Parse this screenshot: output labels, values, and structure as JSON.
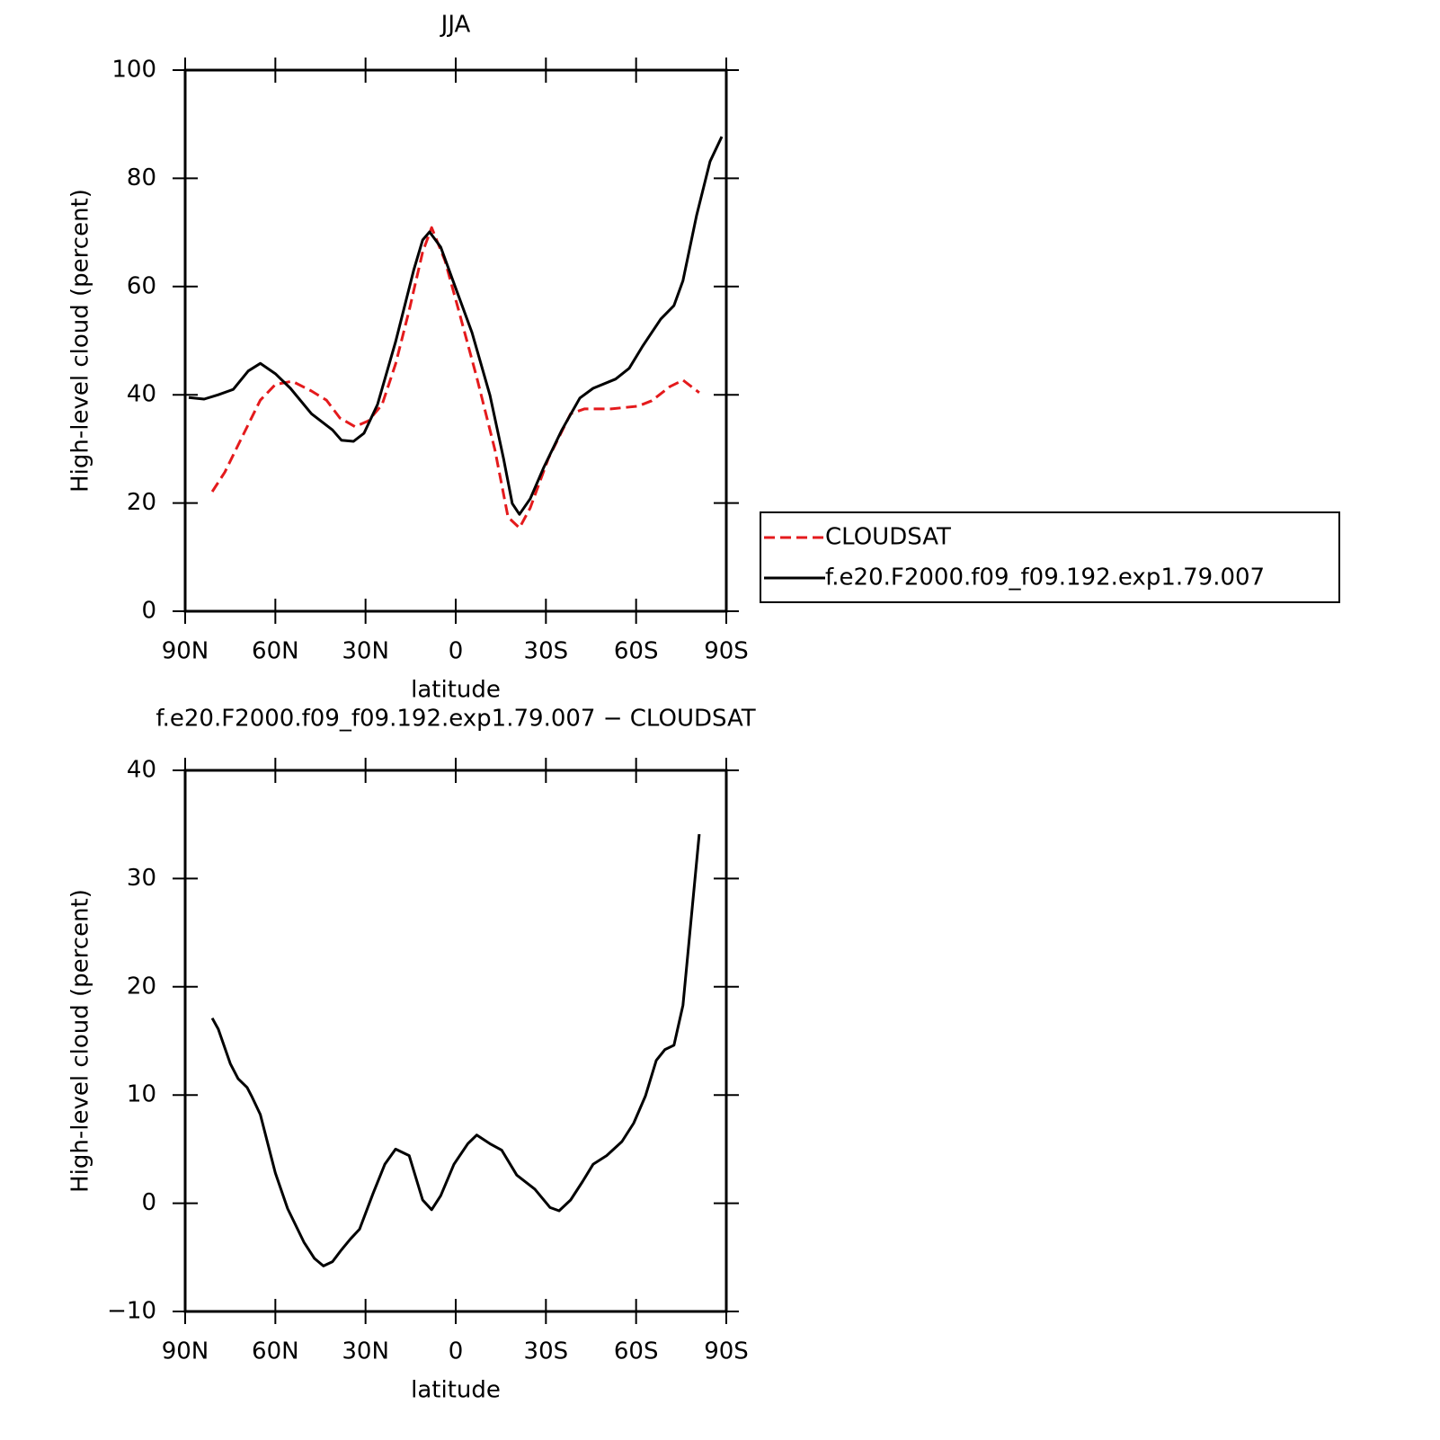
{
  "chart_data": [
    {
      "type": "line",
      "title": "JJA",
      "xlabel": "latitude",
      "ylabel": "High-level cloud (percent)",
      "xlim": [
        90,
        -90
      ],
      "xticks": [
        {
          "value": 90,
          "label": "90N"
        },
        {
          "value": 60,
          "label": "60N"
        },
        {
          "value": 30,
          "label": "30N"
        },
        0,
        {
          "value": -30,
          "label": "30S"
        },
        {
          "value": -60,
          "label": "60S"
        },
        {
          "value": -90,
          "label": "90S"
        }
      ],
      "ylim": [
        0,
        100
      ],
      "yticks": [
        0,
        20,
        40,
        60,
        80,
        100
      ],
      "legend": "right",
      "series": [
        {
          "name": "CLOUDSAT",
          "color": "#e41a1c",
          "dashed": true,
          "x": [
            81,
            76.8,
            70.9,
            65,
            60,
            54.4,
            48,
            43,
            38.5,
            33.5,
            29,
            24.5,
            20,
            15.5,
            11,
            8,
            3.6,
            -1,
            -7,
            -13,
            -17.4,
            -21.2,
            -24.8,
            -30.8,
            -38.2,
            -42.8,
            -51.7,
            -60.7,
            -65.2,
            -71.2,
            -75.6,
            -81
          ],
          "values": [
            22.1,
            25.7,
            32.4,
            39,
            41.9,
            42.5,
            40.7,
            39,
            35.7,
            34.1,
            35.2,
            38.2,
            45.7,
            55.6,
            66.4,
            70.9,
            64.8,
            55.6,
            43.2,
            29.9,
            17.4,
            15.4,
            19.1,
            28.2,
            36.5,
            37.4,
            37.4,
            37.9,
            38.9,
            41.5,
            42.7,
            40.4
          ]
        },
        {
          "name": "f.e20.F2000.f09_f09.192.exp1.79.007",
          "color": "#000000",
          "dashed": false,
          "x": [
            88.8,
            83.7,
            79,
            74,
            69,
            65,
            60,
            55,
            48,
            41,
            38,
            34,
            30.5,
            26,
            20,
            14,
            11,
            8.7,
            5,
            0.6,
            -5.4,
            -11.4,
            -15.9,
            -18.8,
            -21.2,
            -24.8,
            -29.3,
            -35.3,
            -41.3,
            -45.7,
            -53.2,
            -57.7,
            -62.2,
            -68.2,
            -72.6,
            -75.6,
            -80.1,
            -84.6,
            -88.5
          ],
          "values": [
            39.5,
            39.2,
            40,
            41,
            44.4,
            45.8,
            43.9,
            41.2,
            36.5,
            33.5,
            31.6,
            31.4,
            32.9,
            38.2,
            49.8,
            63,
            68.6,
            70.1,
            67.3,
            60.6,
            51.5,
            39.9,
            28.2,
            19.9,
            17.9,
            20.8,
            26.6,
            33.5,
            39.4,
            41.2,
            42.9,
            44.9,
            49,
            54,
            56.5,
            61.1,
            73.1,
            83.1,
            87.7
          ]
        }
      ]
    },
    {
      "type": "line",
      "title": "f.e20.F2000.f09_f09.192.exp1.79.007 − CLOUDSAT",
      "xlabel": "latitude",
      "ylabel": "High-level cloud (percent)",
      "xlim": [
        90,
        -90
      ],
      "xticks": [
        {
          "value": 90,
          "label": "90N"
        },
        {
          "value": 60,
          "label": "60N"
        },
        {
          "value": 30,
          "label": "30N"
        },
        0,
        {
          "value": -30,
          "label": "30S"
        },
        {
          "value": -60,
          "label": "60S"
        },
        {
          "value": -90,
          "label": "90S"
        }
      ],
      "ylim": [
        -10,
        40
      ],
      "yticks": [
        {
          "value": -10,
          "label": "−10"
        },
        0,
        10,
        20,
        30,
        40
      ],
      "series": [
        {
          "color": "#000000",
          "dashed": false,
          "x": [
            81,
            79,
            75,
            72.4,
            69.4,
            67.9,
            65,
            60,
            55.9,
            50.5,
            47,
            44,
            41,
            38,
            35,
            32,
            27.5,
            23.6,
            20,
            15.5,
            11,
            8,
            5,
            0.6,
            -4,
            -7,
            -11.4,
            -15.3,
            -20.3,
            -26.3,
            -31.4,
            -34.4,
            -38.2,
            -42.2,
            -45.7,
            -50.2,
            -55.3,
            -59.2,
            -63.1,
            -66.7,
            -69.6,
            -72.6,
            -75.6,
            -81
          ],
          "values": [
            17.1,
            16.1,
            12.9,
            11.5,
            10.7,
            9.9,
            8.2,
            2.8,
            -0.5,
            -3.6,
            -5.1,
            -5.8,
            -5.4,
            -4.3,
            -3.3,
            -2.4,
            0.9,
            3.6,
            5,
            4.4,
            0.3,
            -0.6,
            0.7,
            3.6,
            5.5,
            6.3,
            5.5,
            4.9,
            2.6,
            1.3,
            -0.4,
            -0.7,
            0.3,
            2,
            3.6,
            4.4,
            5.7,
            7.4,
            9.9,
            13.2,
            14.2,
            14.6,
            18.3,
            34.1
          ]
        }
      ]
    }
  ]
}
